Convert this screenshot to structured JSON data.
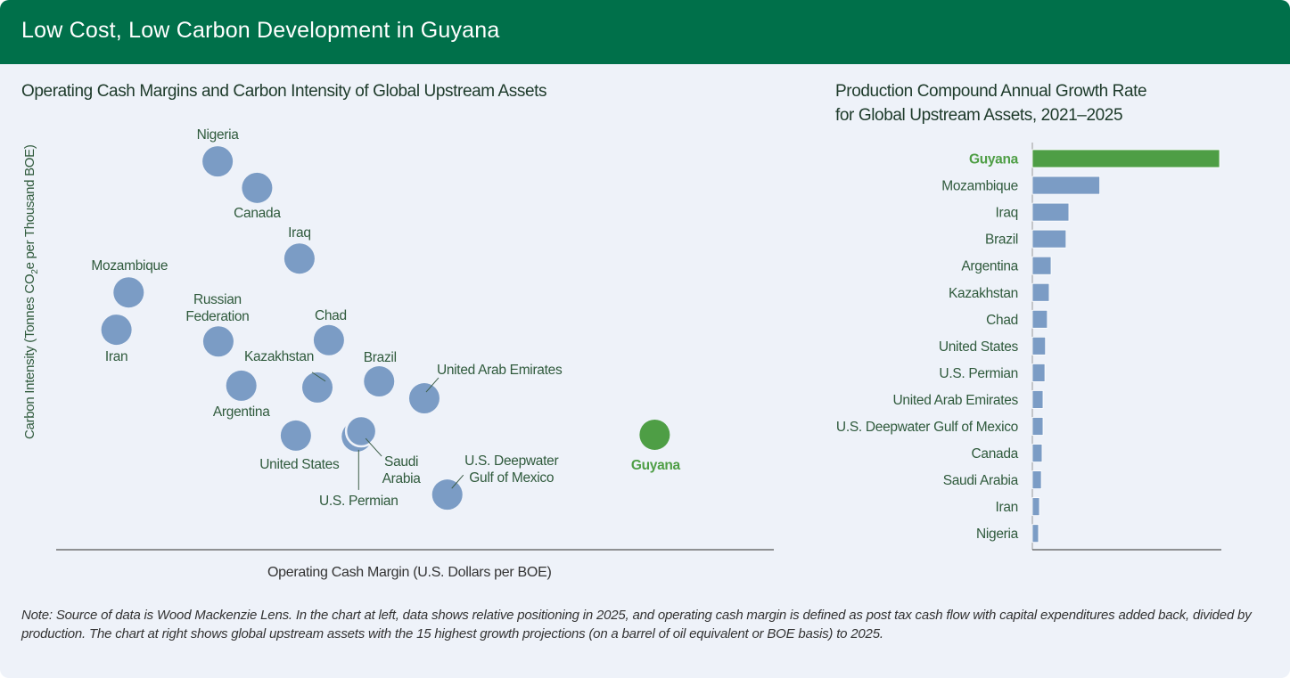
{
  "header": {
    "title": "Low Cost, Low Carbon Development in Guyana"
  },
  "colors": {
    "brand": "#00704a",
    "point": "#7b9cc5",
    "highlight": "#4e9e45",
    "label": "#2f5a3c"
  },
  "chart_data": [
    {
      "type": "scatter",
      "title": "Operating Cash Margins and Carbon Intensity of Global Upstream Assets",
      "xlabel": "Operating Cash Margin (U.S. Dollars per BOE)",
      "ylabel_parts": [
        "Carbon Intensity (Tonnes CO",
        "2",
        "e per Thousand BOE)"
      ],
      "xlim": [
        0,
        100
      ],
      "ylim": [
        0,
        100
      ],
      "note": "Relative positioning only; no axis tick values shown",
      "points": [
        {
          "label": "Nigeria",
          "x": 22.5,
          "y": 89.5
        },
        {
          "label": "Canada",
          "x": 28.0,
          "y": 83.4
        },
        {
          "label": "Iraq",
          "x": 33.9,
          "y": 67.1
        },
        {
          "label": "Mozambique",
          "x": 10.1,
          "y": 59.3
        },
        {
          "label": "Iran",
          "x": 8.4,
          "y": 50.7
        },
        {
          "label": "Russian Federation",
          "lines": [
            "Russian",
            "Federation"
          ],
          "x": 22.6,
          "y": 48.0
        },
        {
          "label": "Chad",
          "x": 38.0,
          "y": 48.3
        },
        {
          "label": "Kazakhstan",
          "x": 36.4,
          "y": 37.4
        },
        {
          "label": "Argentina",
          "x": 25.8,
          "y": 37.8
        },
        {
          "label": "Brazil",
          "x": 45.0,
          "y": 38.8
        },
        {
          "label": "United Arab Emirates",
          "x": 51.3,
          "y": 34.9
        },
        {
          "label": "United States",
          "x": 33.4,
          "y": 26.3
        },
        {
          "label": "U.S. Permian",
          "x": 41.9,
          "y": 26.1
        },
        {
          "label": "Saudi Arabia",
          "lines": [
            "Saudi",
            "Arabia"
          ],
          "x": 42.5,
          "y": 27.3
        },
        {
          "label": "U.S. Deepwater Gulf of Mexico",
          "lines": [
            "U.S. Deepwater",
            "Gulf of Mexico"
          ],
          "x": 54.5,
          "y": 12.7
        },
        {
          "label": "Guyana",
          "x": 83.4,
          "y": 26.5,
          "highlight": true
        }
      ]
    },
    {
      "type": "bar",
      "orientation": "horizontal",
      "title_lines": [
        "Production Compound Annual Growth Rate",
        "for Global Upstream Assets, 2021–2025"
      ],
      "note": "Relative lengths (Guyana = 100); no axis values shown",
      "categories": [
        "Guyana",
        "Mozambique",
        "Iraq",
        "Brazil",
        "Argentina",
        "Kazakhstan",
        "Chad",
        "United States",
        "U.S. Permian",
        "United Arab Emirates",
        "U.S. Deepwater Gulf of Mexico",
        "Canada",
        "Saudi Arabia",
        "Iran",
        "Nigeria"
      ],
      "values": [
        100,
        36,
        19.5,
        18,
        10,
        9,
        8,
        7,
        6.7,
        5.7,
        5.7,
        5.2,
        4.8,
        3.8,
        3.3
      ],
      "highlight": "Guyana"
    }
  ],
  "footnote": "Note: Source of data is Wood Mackenzie Lens. In the chart at left, data shows relative positioning in 2025, and operating cash margin is defined as post tax cash flow with capital expenditures added back, divided by production. The chart at right shows global upstream assets with the 15 highest growth projections (on a barrel of oil equivalent or BOE basis) to 2025."
}
